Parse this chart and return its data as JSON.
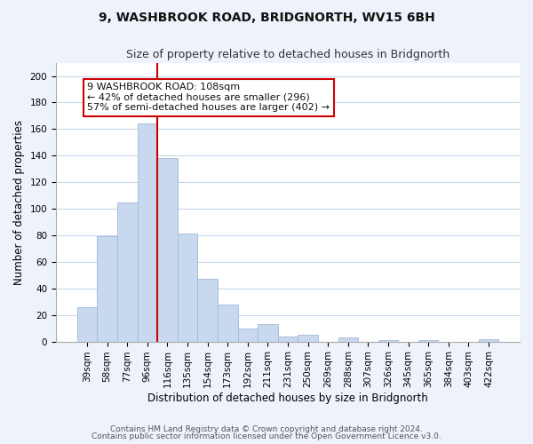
{
  "title": "9, WASHBROOK ROAD, BRIDGNORTH, WV15 6BH",
  "subtitle": "Size of property relative to detached houses in Bridgnorth",
  "xlabel": "Distribution of detached houses by size in Bridgnorth",
  "ylabel": "Number of detached properties",
  "bar_labels": [
    "39sqm",
    "58sqm",
    "77sqm",
    "96sqm",
    "116sqm",
    "135sqm",
    "154sqm",
    "173sqm",
    "192sqm",
    "211sqm",
    "231sqm",
    "250sqm",
    "269sqm",
    "288sqm",
    "307sqm",
    "326sqm",
    "345sqm",
    "365sqm",
    "384sqm",
    "403sqm",
    "422sqm"
  ],
  "bar_values": [
    26,
    79,
    105,
    164,
    138,
    81,
    47,
    28,
    10,
    13,
    4,
    5,
    0,
    3,
    0,
    1,
    0,
    1,
    0,
    0,
    2
  ],
  "bar_color": "#c8d9ef",
  "bar_edge_color": "#a0b8d8",
  "vline_x_index": 3,
  "vline_color": "#cc0000",
  "annotation_text": "9 WASHBROOK ROAD: 108sqm\n← 42% of detached houses are smaller (296)\n57% of semi-detached houses are larger (402) →",
  "annotation_box_edgecolor": "#cc0000",
  "annotation_box_facecolor": "#ffffff",
  "ylim": [
    0,
    210
  ],
  "yticks": [
    0,
    20,
    40,
    60,
    80,
    100,
    120,
    140,
    160,
    180,
    200
  ],
  "footer_line1": "Contains HM Land Registry data © Crown copyright and database right 2024.",
  "footer_line2": "Contains public sector information licensed under the Open Government Licence v3.0.",
  "bg_color": "#eef2fa",
  "plot_bg_color": "#ffffff",
  "title_fontsize": 10,
  "subtitle_fontsize": 9,
  "axis_label_fontsize": 8.5,
  "tick_fontsize": 7.5,
  "annotation_fontsize": 8,
  "footer_fontsize": 6.5
}
